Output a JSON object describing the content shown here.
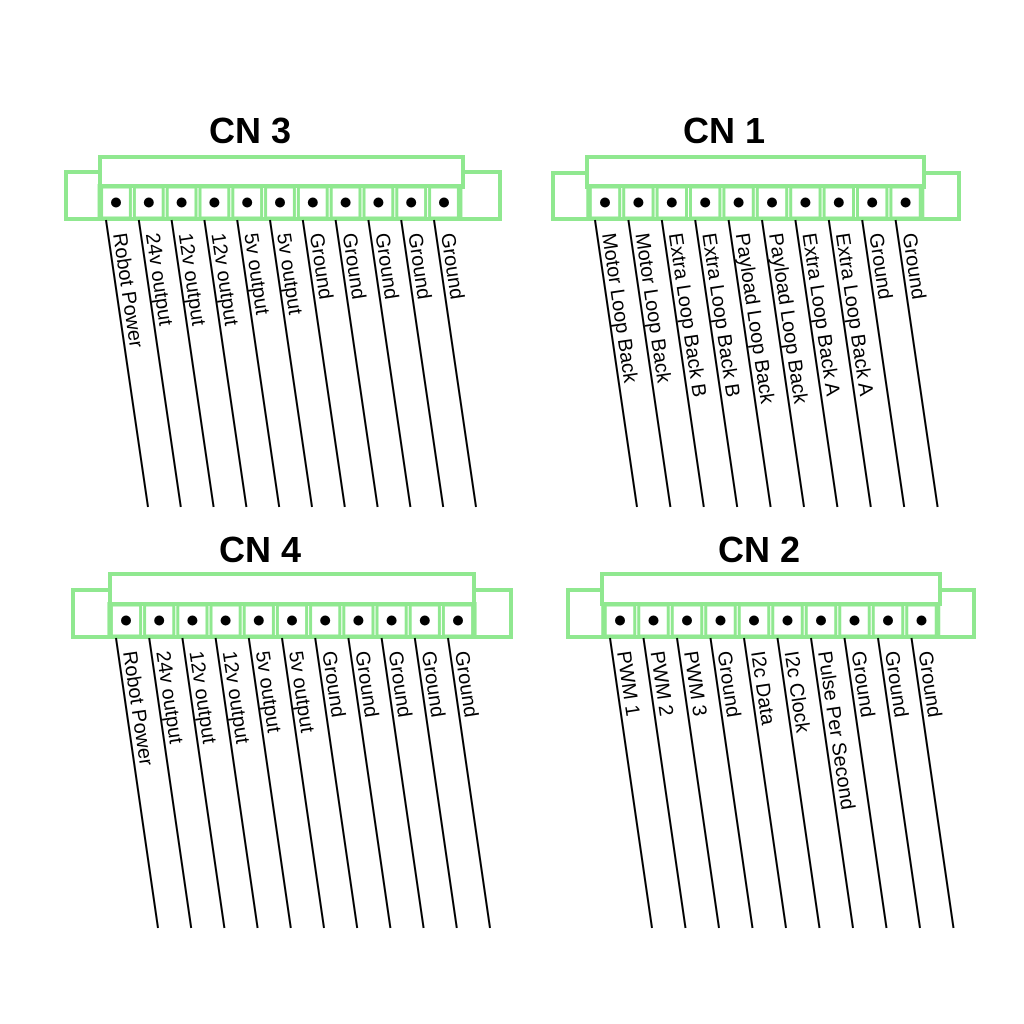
{
  "colors": {
    "housing": "#90e890",
    "pin_dot": "#000000",
    "wire": "#000000",
    "background": "#ffffff"
  },
  "connectors": [
    {
      "id": "cn3",
      "title": "CN 3",
      "pins": [
        "Robot Power",
        "24v output",
        "12v output",
        "12v output",
        "5v output",
        "5v output",
        "Ground",
        "Ground",
        "Ground",
        "Ground",
        "Ground"
      ]
    },
    {
      "id": "cn1",
      "title": "CN 1",
      "pins": [
        "Motor Loop Back",
        "Motor Loop Back",
        "Extra Loop Back B",
        "Extra Loop Back B",
        "Payload Loop Back",
        "Payload Loop Back",
        "Extra Loop Back A",
        "Extra Loop Back A",
        "Ground",
        "Ground"
      ]
    },
    {
      "id": "cn4",
      "title": "CN 4",
      "pins": [
        "Robot Power",
        "24v output",
        "12v output",
        "12v output",
        "5v output",
        "5v output",
        "Ground",
        "Ground",
        "Ground",
        "Ground",
        "Ground"
      ]
    },
    {
      "id": "cn2",
      "title": "CN 2",
      "pins": [
        "PWM 1",
        "PWM 2",
        "PWM 3",
        "Ground",
        "I2c Data",
        "I2c Clock",
        "Pulse Per Second",
        "Ground",
        "Ground",
        "Ground"
      ]
    }
  ]
}
